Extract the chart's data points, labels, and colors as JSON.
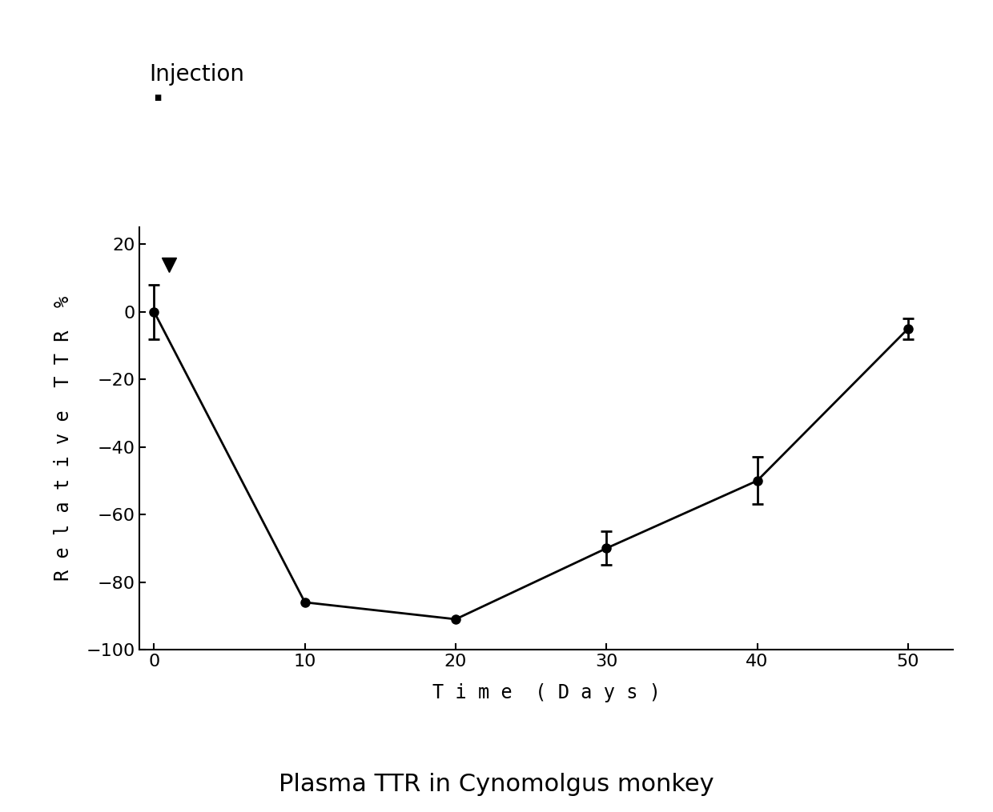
{
  "x": [
    0,
    10,
    20,
    30,
    40,
    50
  ],
  "y": [
    0,
    -86,
    -91,
    -70,
    -50,
    -5
  ],
  "yerr": [
    8,
    0,
    0,
    5,
    7,
    3
  ],
  "xlabel": "T i m e  ( D a y s )",
  "ylabel": "R e l a t i v e  T T R  %",
  "title": "Plasma TTR in Cynomolgus monkey",
  "xlim": [
    -1,
    53
  ],
  "ylim": [
    -100,
    25
  ],
  "yticks": [
    20,
    0,
    -20,
    -40,
    -60,
    -80,
    -100
  ],
  "xticks": [
    0,
    10,
    20,
    30,
    40,
    50
  ],
  "background_color": "#ffffff",
  "line_color": "#000000",
  "marker_color": "#000000",
  "fontsize_title": 22,
  "fontsize_axis_label": 17,
  "fontsize_tick": 16,
  "fontsize_injection": 20
}
